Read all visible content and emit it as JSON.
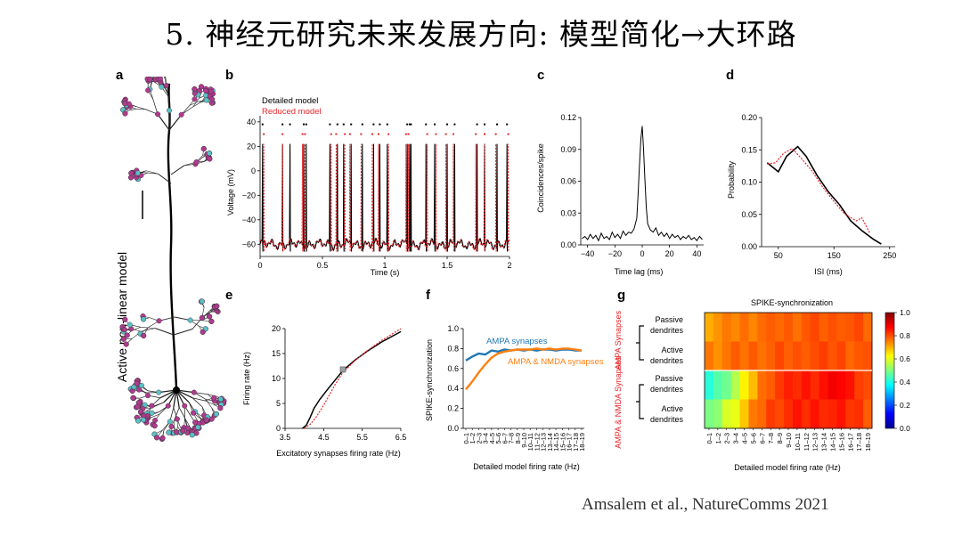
{
  "slide": {
    "title": "5. 神经元研究未来发展方向: 模型简化→大环路",
    "citation": "Amsalem et al., NatureComms 2021"
  },
  "panels": {
    "a": {
      "label": "a",
      "ylabel": "Active non-linear model"
    },
    "b": {
      "label": "b",
      "legend_detailed": "Detailed model",
      "legend_reduced": "Reduced model",
      "ylabel": "Voltage (mV)",
      "xlabel": "Time (s)",
      "yticks": [
        "40",
        "20",
        "0",
        "−20",
        "−40",
        "−60"
      ],
      "xticks": [
        "0",
        "0.5",
        "1",
        "1.5",
        "2"
      ]
    },
    "c": {
      "label": "c",
      "ylabel": "Coincidences/spike",
      "xlabel": "Time lag (ms)",
      "yticks": [
        "0.12",
        "0.09",
        "0.06",
        "0.03",
        "0.00"
      ],
      "xticks": [
        "−40",
        "−20",
        "0",
        "20",
        "40"
      ]
    },
    "d": {
      "label": "d",
      "ylabel": "Probability",
      "xlabel": "ISI (ms)",
      "yticks": [
        "0.20",
        "0.15",
        "0.10",
        "0.05",
        "0.00"
      ],
      "xticks": [
        "50",
        "150",
        "250"
      ]
    },
    "e": {
      "label": "e",
      "ylabel": "Firing rate (Hz)",
      "xlabel": "Excitatory synapses firing rate (Hz)",
      "yticks": [
        "20",
        "15",
        "10",
        "5",
        "0"
      ],
      "xticks": [
        "3.5",
        "4.5",
        "5.5",
        "6.5"
      ]
    },
    "f": {
      "label": "f",
      "ylabel": "SPIKE-synchronization",
      "xlabel": "Detailed model firing rate (Hz)",
      "yticks": [
        "1.0",
        "0.8",
        "0.6",
        "0.4",
        "0.2",
        "0.0"
      ],
      "series_ampa": "AMPA synapses",
      "series_nmda": "AMPA & NMDA synapses"
    },
    "g": {
      "label": "g",
      "title": "SPIKE-synchronization",
      "xlabel": "Detailed model firing rate (Hz)",
      "group_ampa": "AMPA Synapses",
      "group_nmda": "AMPA & NMDA Synapses",
      "passive_1": "Passive",
      "dendrites_1": "dendrites",
      "active_1": "Active",
      "dendrites_2": "dendrites",
      "passive_2": "Passive",
      "dendrites_3": "dendrites",
      "active_2": "Active",
      "dendrites_4": "dendrites",
      "cbar_ticks": [
        "1.0",
        "0.8",
        "0.6",
        "0.4",
        "0.2",
        "0.0"
      ]
    }
  },
  "chart_data": [
    {
      "id": "b",
      "type": "line",
      "title": "",
      "xlabel": "Time (s)",
      "ylabel": "Voltage (mV)",
      "xlim": [
        0,
        2
      ],
      "ylim": [
        -70,
        45
      ],
      "series": [
        {
          "name": "Detailed model",
          "color": "#000000"
        },
        {
          "name": "Reduced model",
          "color": "#e8262a"
        }
      ],
      "spike_times_detailed": [
        0.02,
        0.18,
        0.24,
        0.35,
        0.37,
        0.56,
        0.62,
        0.67,
        0.73,
        0.82,
        0.91,
        0.96,
        1.02,
        1.18,
        1.2,
        1.21,
        1.33,
        1.4,
        1.5,
        1.56,
        1.74,
        1.8,
        1.9,
        1.98
      ],
      "spike_times_reduced": [
        0.03,
        0.18,
        0.34,
        0.36,
        0.57,
        0.61,
        0.68,
        0.72,
        0.81,
        0.9,
        0.95,
        1.03,
        1.17,
        1.19,
        1.34,
        1.41,
        1.49,
        1.55,
        1.73,
        1.8,
        1.89,
        1.99
      ],
      "baseline": -60,
      "peak": 22,
      "marker_level": 38
    },
    {
      "id": "c",
      "type": "line",
      "xlabel": "Time lag (ms)",
      "ylabel": "Coincidences/spike",
      "xlim": [
        -45,
        45
      ],
      "ylim": [
        0,
        0.12
      ],
      "x": [
        -44,
        -42,
        -40,
        -38,
        -36,
        -34,
        -32,
        -30,
        -28,
        -26,
        -24,
        -22,
        -20,
        -18,
        -16,
        -14,
        -12,
        -10,
        -8,
        -6,
        -4,
        -3,
        -2,
        -1,
        0,
        1,
        2,
        3,
        4,
        6,
        8,
        10,
        12,
        14,
        16,
        18,
        20,
        22,
        24,
        26,
        28,
        30,
        32,
        34,
        36,
        38,
        40,
        42,
        44
      ],
      "y": [
        0.006,
        0.008,
        0.005,
        0.01,
        0.006,
        0.009,
        0.004,
        0.011,
        0.006,
        0.008,
        0.005,
        0.012,
        0.007,
        0.01,
        0.006,
        0.013,
        0.009,
        0.012,
        0.011,
        0.015,
        0.025,
        0.048,
        0.075,
        0.1,
        0.112,
        0.09,
        0.06,
        0.035,
        0.02,
        0.014,
        0.012,
        0.016,
        0.009,
        0.012,
        0.008,
        0.011,
        0.006,
        0.01,
        0.007,
        0.009,
        0.005,
        0.008,
        0.006,
        0.009,
        0.005,
        0.007,
        0.004,
        0.008,
        0.005
      ]
    },
    {
      "id": "d",
      "type": "line",
      "xlabel": "ISI (ms)",
      "ylabel": "Probability",
      "xlim": [
        20,
        260
      ],
      "ylim": [
        0,
        0.2
      ],
      "series": [
        {
          "name": "Detailed model",
          "color": "#000000",
          "x": [
            30,
            50,
            65,
            85,
            100,
            120,
            140,
            160,
            180,
            200,
            220,
            235
          ],
          "y": [
            0.13,
            0.116,
            0.14,
            0.155,
            0.14,
            0.11,
            0.085,
            0.065,
            0.04,
            0.025,
            0.012,
            0.004
          ]
        },
        {
          "name": "Reduced model",
          "color": "#e8262a",
          "x": [
            30,
            45,
            60,
            75,
            90,
            110,
            130,
            150,
            170,
            190,
            200,
            215
          ],
          "y": [
            0.128,
            0.13,
            0.145,
            0.152,
            0.138,
            0.118,
            0.092,
            0.07,
            0.05,
            0.04,
            0.045,
            0.02
          ]
        }
      ]
    },
    {
      "id": "e",
      "type": "line",
      "xlabel": "Excitatory synapses firing rate (Hz)",
      "ylabel": "Firing rate (Hz)",
      "xlim": [
        3.5,
        6.5
      ],
      "ylim": [
        0,
        20
      ],
      "series": [
        {
          "name": "Detailed model",
          "color": "#000000",
          "x": [
            3.95,
            4.05,
            4.15,
            4.25,
            4.4,
            4.6,
            4.8,
            5.0,
            5.3,
            5.6,
            6.0,
            6.5
          ],
          "y": [
            0,
            0.6,
            2.2,
            4.0,
            5.8,
            7.8,
            9.7,
            11.6,
            13.6,
            15.3,
            17.3,
            19.4
          ]
        },
        {
          "name": "Reduced model",
          "color": "#e8262a",
          "x": [
            4.0,
            4.15,
            4.3,
            4.45,
            4.6,
            4.8,
            5.0,
            5.3,
            5.6,
            6.0,
            6.5
          ],
          "y": [
            0,
            0.8,
            2.2,
            4.0,
            6.0,
            8.8,
            11.2,
            13.5,
            15.4,
            17.6,
            20.0
          ]
        }
      ],
      "marker": {
        "x": 5.0,
        "y": 11.8
      }
    },
    {
      "id": "f",
      "type": "line",
      "xlabel": "Detailed model firing rate (Hz)",
      "ylabel": "SPIKE-synchronization",
      "ylim": [
        0,
        1
      ],
      "categories": [
        "0–1",
        "1–2",
        "2–3",
        "3–4",
        "4–5",
        "5–6",
        "6–7",
        "7–8",
        "8–9",
        "9–10",
        "10–11",
        "11–12",
        "12–13",
        "13–14",
        "14–15",
        "15–16",
        "16–17",
        "17–18",
        "18–19"
      ],
      "series": [
        {
          "name": "AMPA synapses",
          "color": "#1f77b4",
          "values": [
            0.68,
            0.72,
            0.75,
            0.74,
            0.78,
            0.77,
            0.79,
            0.78,
            0.79,
            0.78,
            0.79,
            0.78,
            0.79,
            0.79,
            0.78,
            0.79,
            0.79,
            0.78,
            0.78
          ]
        },
        {
          "name": "AMPA & NMDA synapses",
          "color": "#ff7f0e",
          "values": [
            0.39,
            0.47,
            0.56,
            0.64,
            0.71,
            0.75,
            0.77,
            0.78,
            0.79,
            0.79,
            0.79,
            0.8,
            0.79,
            0.8,
            0.79,
            0.8,
            0.8,
            0.79,
            0.78
          ]
        }
      ]
    },
    {
      "id": "g",
      "type": "heatmap",
      "title": "SPIKE-synchronization",
      "xlabel": "Detailed model firing rate (Hz)",
      "vmin": 0,
      "vmax": 1,
      "categories": [
        "0–1",
        "1–2",
        "2–3",
        "3–4",
        "4–5",
        "5–6",
        "6–7",
        "7–8",
        "8–9",
        "9–10",
        "10–11",
        "11–12",
        "12–13",
        "13–14",
        "14–15",
        "15–16",
        "16–17",
        "17–18",
        "18–19"
      ],
      "rows": [
        "AMPA Passive",
        "AMPA Active",
        "AMPA & NMDA Passive",
        "AMPA & NMDA Active"
      ],
      "values": [
        [
          0.72,
          0.73,
          0.74,
          0.75,
          0.76,
          0.76,
          0.77,
          0.77,
          0.78,
          0.78,
          0.78,
          0.79,
          0.79,
          0.79,
          0.79,
          0.8,
          0.79,
          0.79,
          0.78
        ],
        [
          0.75,
          0.75,
          0.76,
          0.77,
          0.77,
          0.78,
          0.78,
          0.78,
          0.79,
          0.79,
          0.79,
          0.8,
          0.8,
          0.8,
          0.8,
          0.8,
          0.79,
          0.79,
          0.78
        ],
        [
          0.42,
          0.45,
          0.5,
          0.55,
          0.62,
          0.7,
          0.76,
          0.8,
          0.82,
          0.83,
          0.84,
          0.85,
          0.85,
          0.86,
          0.87,
          0.88,
          0.85,
          0.83,
          0.8
        ],
        [
          0.48,
          0.52,
          0.58,
          0.62,
          0.68,
          0.74,
          0.78,
          0.81,
          0.82,
          0.83,
          0.84,
          0.84,
          0.85,
          0.85,
          0.84,
          0.84,
          0.83,
          0.82,
          0.8
        ]
      ]
    }
  ]
}
